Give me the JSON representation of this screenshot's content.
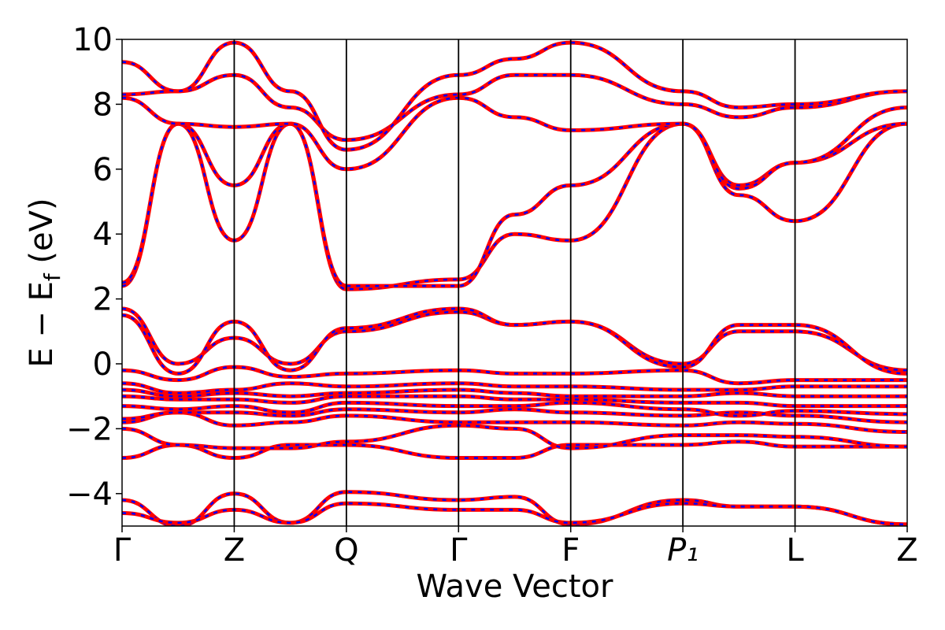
{
  "chart_data": {
    "type": "line",
    "xlabel": "Wave Vector",
    "ylabel": "E − E_f (eV)",
    "ylabel_parts": {
      "main": "E − E",
      "sub": "f",
      "unit": " (eV)"
    },
    "ylim": [
      -5,
      10
    ],
    "yticks": [
      -4,
      -2,
      0,
      2,
      4,
      6,
      8,
      10
    ],
    "ytick_labels": [
      "−4",
      "−2",
      "0",
      "2",
      "4",
      "6",
      "8",
      "10"
    ],
    "xlim": [
      0,
      7
    ],
    "kpoints": [
      {
        "label": "Γ",
        "x": 0
      },
      {
        "label": "Z",
        "x": 1
      },
      {
        "label": "Q",
        "x": 2
      },
      {
        "label": "Γ",
        "x": 3
      },
      {
        "label": "F",
        "x": 4
      },
      {
        "label": "P₁",
        "x": 5
      },
      {
        "label": "L",
        "x": 6
      },
      {
        "label": "Z",
        "x": 7
      }
    ],
    "grid": false,
    "legend": "none",
    "colors": {
      "series_a": "#ff0000",
      "series_b": "#0000ff",
      "kpath_lines": "#000000"
    },
    "series": [
      {
        "style": "solid red",
        "overlay": "dashed blue"
      }
    ],
    "bands": [
      [
        -4.2,
        -5.0,
        -4.0,
        -4.9,
        -3.95,
        -4.2,
        -4.1,
        -4.95,
        -4.2,
        -4.4,
        -4.4,
        -4.95
      ],
      [
        -4.6,
        -4.9,
        -4.5,
        -4.9,
        -4.3,
        -4.5,
        -4.5,
        -4.9,
        -4.3,
        -4.4,
        -4.4,
        -4.95
      ],
      [
        -2.9,
        -2.5,
        -2.9,
        -2.5,
        -2.5,
        -2.9,
        -2.9,
        -2.5,
        -2.5,
        -2.4,
        -2.55,
        -2.55
      ],
      [
        -2.0,
        -2.5,
        -2.6,
        -2.6,
        -2.4,
        -1.9,
        -2.0,
        -2.6,
        -2.2,
        -2.2,
        -2.25,
        -2.55
      ],
      [
        -1.8,
        -1.5,
        -1.9,
        -1.8,
        -1.6,
        -1.8,
        -1.8,
        -1.8,
        -1.9,
        -1.8,
        -1.85,
        -2.1
      ],
      [
        -1.7,
        -1.5,
        -1.5,
        -1.6,
        -1.4,
        -1.5,
        -1.4,
        -1.5,
        -1.6,
        -1.5,
        -1.6,
        -1.8
      ],
      [
        -1.3,
        -1.4,
        -1.3,
        -1.5,
        -1.2,
        -1.3,
        -1.3,
        -1.2,
        -1.4,
        -1.6,
        -1.45,
        -1.55
      ],
      [
        -1.0,
        -1.1,
        -1.1,
        -1.2,
        -1.0,
        -1.0,
        -1.1,
        -1.1,
        -1.2,
        -1.2,
        -1.3,
        -1.3
      ],
      [
        -0.8,
        -1.0,
        -0.9,
        -1.0,
        -0.9,
        -0.8,
        -0.9,
        -1.0,
        -1.0,
        -0.9,
        -1.0,
        -1.0
      ],
      [
        -0.6,
        -0.9,
        -0.8,
        -0.6,
        -0.7,
        -0.6,
        -0.7,
        -0.7,
        -0.8,
        -0.8,
        -0.7,
        -0.7
      ],
      [
        -0.2,
        -0.5,
        -0.1,
        -0.4,
        -0.3,
        -0.2,
        -0.3,
        -0.3,
        -0.2,
        -0.6,
        -0.5,
        -0.5
      ],
      [
        1.7,
        0.0,
        0.8,
        0.0,
        1.0,
        1.6,
        1.2,
        1.3,
        0.0,
        1.0,
        1.0,
        -0.2
      ],
      [
        1.5,
        -0.3,
        1.3,
        -0.2,
        1.1,
        1.7,
        1.2,
        1.3,
        -0.1,
        1.2,
        1.2,
        -0.3
      ],
      [
        2.4,
        7.4,
        3.8,
        7.4,
        2.3,
        2.6,
        4.0,
        3.8,
        7.4,
        5.2,
        4.4,
        7.4
      ],
      [
        2.5,
        7.4,
        5.5,
        7.4,
        2.4,
        2.4,
        4.6,
        5.5,
        7.4,
        5.5,
        6.2,
        7.4
      ],
      [
        8.2,
        7.4,
        7.3,
        7.4,
        6.0,
        8.2,
        7.6,
        7.2,
        7.4,
        5.4,
        6.2,
        7.9
      ],
      [
        8.3,
        8.4,
        8.9,
        7.9,
        6.9,
        8.3,
        8.9,
        8.9,
        8.0,
        7.6,
        7.9,
        8.4
      ],
      [
        9.3,
        8.4,
        9.9,
        8.4,
        6.6,
        8.9,
        9.4,
        9.9,
        8.4,
        7.9,
        8.0,
        8.4
      ]
    ]
  }
}
